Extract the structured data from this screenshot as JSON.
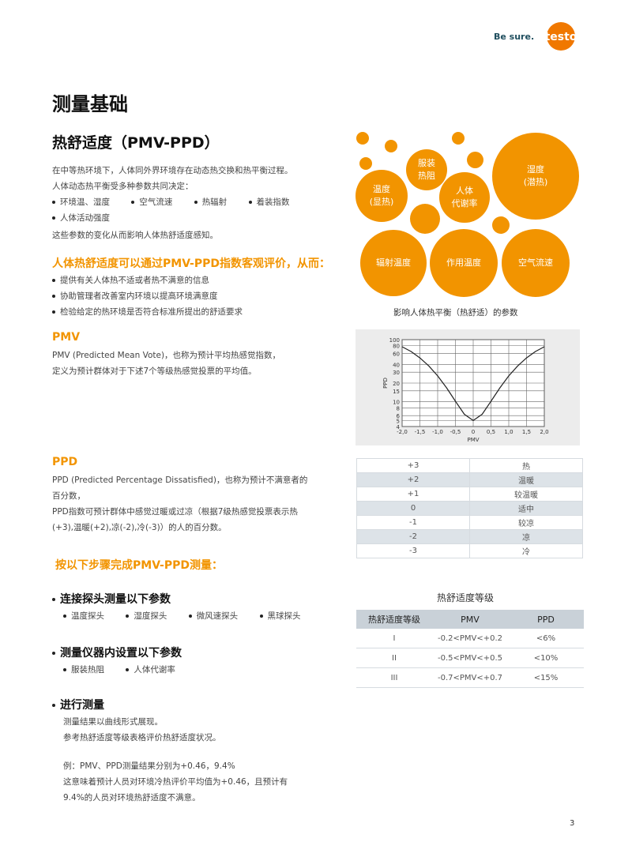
{
  "logo": {
    "tagline": "Be sure.",
    "brand": "testo",
    "colors": {
      "tagline": "#1f4e5e",
      "brand": "#f07800"
    }
  },
  "page_title": "测量基础",
  "section_title": "热舒适度（PMV-PPD）",
  "intro": {
    "line1": "在中等热环境下，人体同外界环境存在动态热交换和热平衡过程。",
    "line2": "人体动态热平衡受多种参数共同决定：",
    "params": [
      "环境温、湿度",
      "空气流速",
      "热辐射",
      "着装指数",
      "人体活动强度"
    ],
    "line3": "这些参数的变化从而影响人体热舒适度感知。"
  },
  "eval": {
    "heading": "人体热舒适度可以通过PMV-PPD指数客观评价，从而：",
    "items": [
      "提供有关人体热不适或者热不满意的信息",
      "协助管理者改善室内环境以提高环境满意度",
      "检验给定的热环境是否符合标准所提出的舒适要求"
    ]
  },
  "bubbles": {
    "labels": {
      "clothing": "服装\n热阻",
      "temp": "温度\n(显热)",
      "metabolic": "人体\n代谢率",
      "humidity": "湿度\n(潜热)",
      "radiant": "辐射温度",
      "operative": "作用温度",
      "airflow": "空气流速"
    },
    "caption": "影响人体热平衡（热舒适）的参数",
    "color": "#f29400"
  },
  "pmv": {
    "heading": "PMV",
    "line1": "PMV (Predicted Mean Vote)，也称为预计平均热感觉指数，",
    "line2": "定义为预计群体对于下述7个等级热感觉投票的平均值。"
  },
  "ppd": {
    "heading": "PPD",
    "line1": "PPD (Predicted Percentage Dissatisfied)，也称为预计不满意者的",
    "line2": "百分数，",
    "line3": "PPD指数可预计群体中感觉过暖或过凉（根据7级热感觉投票表示热",
    "line4": "(+3),温暖(+2),凉(-2),冷(-3)）的人的百分数。"
  },
  "chart_data": {
    "type": "line",
    "xlabel": "PMV",
    "ylabel": "PPD",
    "xlim": [
      -2,
      2
    ],
    "ylim": [
      4,
      100
    ],
    "yscale": "log",
    "grid": true,
    "xticks": [
      "-2,0",
      "-1,5",
      "-1,0",
      "-0,5",
      "0",
      "0,5",
      "1,0",
      "1,5",
      "2,0"
    ],
    "yticks": [
      "4",
      "5",
      "6",
      "8",
      "10",
      "15",
      "20",
      "30",
      "40",
      "60",
      "80",
      "100"
    ],
    "x": [
      -2,
      -1.75,
      -1.5,
      -1.25,
      -1,
      -0.75,
      -0.5,
      -0.25,
      0,
      0.25,
      0.5,
      0.75,
      1,
      1.25,
      1.5,
      1.75,
      2
    ],
    "y": [
      76.8,
      64.4,
      50.9,
      37.7,
      26.1,
      16.8,
      10.2,
      6.3,
      5,
      6.3,
      10.2,
      16.8,
      26.1,
      37.7,
      50.9,
      64.4,
      76.8
    ]
  },
  "scale_table": [
    [
      "+3",
      "热"
    ],
    [
      "+2",
      "温暖"
    ],
    [
      "+1",
      "较温暖"
    ],
    [
      "0",
      "适中"
    ],
    [
      "-1",
      "较凉"
    ],
    [
      "-2",
      "凉"
    ],
    [
      "-3",
      "冷"
    ]
  ],
  "steps": {
    "heading": "按以下步骤完成PMV-PPD测量：",
    "s1": {
      "title": "连接探头测量以下参数",
      "items": [
        "温度探头",
        "湿度探头",
        "微风速探头",
        "黑球探头"
      ]
    },
    "s2": {
      "title": "测量仪器内设置以下参数",
      "items": [
        "服装热阻",
        "人体代谢率"
      ]
    },
    "s3": {
      "title": "进行测量",
      "line1": "测量结果以曲线形式展现。",
      "line2": "参考热舒适度等级表格评价热舒适度状况。",
      "ex1": "例：PMV、PPD测量结果分别为+0.46，9.4%",
      "ex2": "这意味着预计人员对环境冷热评价平均值为+0.46，且预计有",
      "ex3": "9.4%的人员对环境热舒适度不满意。"
    }
  },
  "comfort_table": {
    "caption": "热舒适度等级",
    "headers": [
      "热舒适度等级",
      "PMV",
      "PPD"
    ],
    "rows": [
      [
        "I",
        "-0.2<PMV<+0.2",
        "<6%"
      ],
      [
        "II",
        "-0.5<PMV<+0.5",
        "<10%"
      ],
      [
        "III",
        "-0.7<PMV<+0.7",
        "<15%"
      ]
    ]
  },
  "page_number": "3"
}
